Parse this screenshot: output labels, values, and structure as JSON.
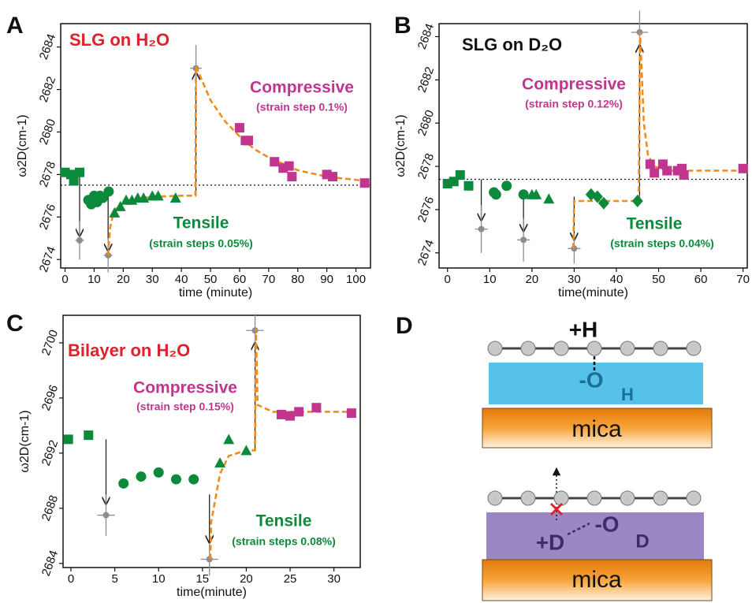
{
  "chart_data": [
    {
      "type": "scatter",
      "panel_label": "A",
      "title": "SLG on H₂O",
      "title_color": "#e0202a",
      "xlabel": "time (minute)",
      "ylabel": "ω2D(cm-1)",
      "xlim": [
        -1.5,
        105
      ],
      "ylim": [
        2673.6,
        2685.1
      ],
      "xticks": [
        0,
        10,
        20,
        30,
        40,
        50,
        60,
        70,
        80,
        90,
        100
      ],
      "yticks": [
        2674,
        2676,
        2678,
        2680,
        2682,
        2684
      ],
      "ref_line": 2677.5,
      "series": [
        {
          "color": "#0c8a3c",
          "marker": "square",
          "x": [
            0,
            2,
            3,
            5
          ],
          "values": [
            2678.1,
            2678,
            2677.7,
            2678.1
          ]
        },
        {
          "color": "#0c8a3c",
          "marker": "circle",
          "x": [
            8,
            9,
            10,
            11,
            12,
            13,
            15
          ],
          "values": [
            2676.8,
            2676.6,
            2677,
            2676.7,
            2677,
            2676.9,
            2677.2
          ]
        },
        {
          "color": "#0c8a3c",
          "marker": "triangle",
          "x": [
            17,
            19,
            21,
            23,
            25,
            27,
            30,
            32,
            38
          ],
          "values": [
            2676.2,
            2676.5,
            2676.8,
            2676.8,
            2676.9,
            2676.9,
            2677,
            2677,
            2676.9
          ]
        },
        {
          "color": "#c1358f",
          "marker": "square",
          "x": [
            60,
            62,
            63,
            72,
            75,
            77,
            78,
            90,
            92,
            103
          ],
          "values": [
            2680.2,
            2679.6,
            2679.6,
            2678.6,
            2678.3,
            2678.4,
            2677.9,
            2678,
            2677.9,
            2677.6
          ]
        }
      ],
      "errors": {
        "color": "#8c8c8c",
        "x": [
          5,
          14.8,
          45
        ],
        "values": [
          2674.9,
          2674.2,
          2683
        ],
        "xerr": [
          1.5,
          1.5,
          2
        ],
        "yerr": [
          0.9,
          0.8,
          1.1
        ]
      },
      "fit": {
        "color": "#f08c1e",
        "x": [
          14.8,
          15.5,
          16.5,
          18,
          22,
          30,
          40,
          44.8,
          45,
          50,
          55,
          60,
          65,
          70,
          80,
          90,
          103
        ],
        "values": [
          2674.2,
          2675.5,
          2676.1,
          2676.5,
          2676.8,
          2676.95,
          2677,
          2677,
          2683.1,
          2681.5,
          2680.5,
          2679.8,
          2679.2,
          2678.8,
          2678.2,
          2677.9,
          2677.7
        ]
      },
      "arrows": [
        {
          "x": 5,
          "y1": 2677.9,
          "y2": 2675.1
        },
        {
          "x": 14.8,
          "y1": 2677.1,
          "y2": 2674.4
        },
        {
          "x": 45,
          "y1": 2677,
          "y2": 2682.8
        }
      ],
      "annotations": [
        {
          "text": "Compressive",
          "color": "#c1358f"
        },
        {
          "text": "(strain step 0.1%)",
          "color": "#c1358f"
        },
        {
          "text": "Tensile",
          "color": "#0c8a3c"
        },
        {
          "text": "(strain steps 0.05%)",
          "color": "#0c8a3c"
        }
      ]
    },
    {
      "type": "scatter",
      "panel_label": "B",
      "title": "SLG on D₂O",
      "title_color": "#111111",
      "xlabel": "time(minute)",
      "ylabel": "ω2D(cm-1)",
      "xlim": [
        -2,
        71
      ],
      "ylim": [
        2673.3,
        2684.6
      ],
      "xticks": [
        0,
        10,
        20,
        30,
        40,
        50,
        60,
        70
      ],
      "yticks": [
        2674,
        2676,
        2678,
        2680,
        2682,
        2684
      ],
      "ref_line": 2677.4,
      "series": [
        {
          "color": "#0c8a3c",
          "marker": "square",
          "x": [
            0,
            1.5,
            3,
            5
          ],
          "values": [
            2677.2,
            2677.3,
            2677.6,
            2677.1
          ]
        },
        {
          "color": "#0c8a3c",
          "marker": "circle",
          "x": [
            11,
            11.5,
            14,
            18
          ],
          "values": [
            2676.8,
            2676.7,
            2677.1,
            2676.7
          ]
        },
        {
          "color": "#0c8a3c",
          "marker": "triangle",
          "x": [
            20,
            21,
            24
          ],
          "values": [
            2676.7,
            2676.7,
            2676.5
          ]
        },
        {
          "color": "#0c8a3c",
          "marker": "diamond",
          "x": [
            34,
            35.5,
            37,
            45
          ],
          "values": [
            2676.7,
            2676.6,
            2676.3,
            2676.4
          ]
        },
        {
          "color": "#c1358f",
          "marker": "square",
          "x": [
            48,
            49,
            51,
            52,
            54.5,
            55.5,
            56,
            70
          ],
          "values": [
            2678.1,
            2677.7,
            2678.1,
            2677.8,
            2677.8,
            2677.9,
            2677.6,
            2677.9
          ]
        }
      ],
      "errors": {
        "color": "#8c8c8c",
        "x": [
          8,
          18,
          30,
          45.5
        ],
        "values": [
          2675.1,
          2674.6,
          2674.2,
          2684.2
        ],
        "xerr": [
          1.5,
          1.5,
          1.5,
          2
        ],
        "yerr": [
          1.1,
          1,
          0.7,
          1
        ]
      },
      "fit": {
        "color": "#f08c1e",
        "x": [
          29.8,
          30,
          45.3,
          45.6,
          46.5,
          47.5,
          49,
          52,
          70
        ],
        "values": [
          2674.2,
          2676.4,
          2676.4,
          2684.2,
          2680,
          2678.5,
          2678,
          2677.8,
          2677.8
        ]
      },
      "arrows": [
        {
          "x": 8,
          "y1": 2677.4,
          "y2": 2675.5
        },
        {
          "x": 18,
          "y1": 2676.8,
          "y2": 2675
        },
        {
          "x": 30,
          "y1": 2676.6,
          "y2": 2674.6
        },
        {
          "x": 45.5,
          "y1": 2676.4,
          "y2": 2683.6
        }
      ],
      "annotations": [
        {
          "text": "Compressive",
          "color": "#c1358f"
        },
        {
          "text": "(strain step 0.12%)",
          "color": "#c1358f"
        },
        {
          "text": "Tensile",
          "color": "#0c8a3c"
        },
        {
          "text": "(strain steps 0.04%)",
          "color": "#0c8a3c"
        }
      ]
    },
    {
      "type": "scatter",
      "panel_label": "C",
      "title": "Bilayer on H₂O",
      "title_color": "#e0202a",
      "xlabel": "time(minute)",
      "ylabel": "ω2D(cm-1)",
      "xlim": [
        -0.9,
        33
      ],
      "ylim": [
        2683.7,
        2702
      ],
      "xticks": [
        0,
        5,
        10,
        15,
        20,
        25,
        30
      ],
      "yticks": [
        2684,
        2688,
        2692,
        2696,
        2700
      ],
      "series": [
        {
          "color": "#0c8a3c",
          "marker": "square",
          "x": [
            -0.3,
            2
          ],
          "values": [
            2693,
            2693.3
          ]
        },
        {
          "color": "#0c8a3c",
          "marker": "circle",
          "x": [
            6,
            8,
            10,
            12,
            14
          ],
          "values": [
            2689.8,
            2690.3,
            2690.6,
            2690.1,
            2690.1
          ]
        },
        {
          "color": "#0c8a3c",
          "marker": "triangle",
          "x": [
            17,
            18,
            20
          ],
          "values": [
            2691.3,
            2693,
            2692.2
          ]
        },
        {
          "color": "#c1358f",
          "marker": "square",
          "x": [
            24,
            25,
            26,
            28,
            32
          ],
          "values": [
            2694.8,
            2694.7,
            2695,
            2695.3,
            2694.9
          ]
        }
      ],
      "errors": {
        "color": "#8c8c8c",
        "x": [
          4,
          15.8,
          21
        ],
        "values": [
          2687.5,
          2684.3,
          2700.9
        ],
        "xerr": [
          1,
          1,
          1
        ],
        "yerr": [
          1.5,
          1.2,
          1.2
        ]
      },
      "fit": {
        "color": "#f08c1e",
        "x": [
          15.9,
          16,
          17,
          18,
          20,
          21,
          21.1,
          21.3,
          23,
          32
        ],
        "values": [
          2684.3,
          2687,
          2690.5,
          2691.8,
          2692.2,
          2692.2,
          2701,
          2695.5,
          2695,
          2695
        ]
      },
      "arrows": [
        {
          "x": 4,
          "y1": 2693,
          "y2": 2688.3
        },
        {
          "x": 15.8,
          "y1": 2689,
          "y2": 2685.5
        },
        {
          "x": 21,
          "y1": 2692.2,
          "y2": 2700
        }
      ],
      "annotations": [
        {
          "text": "Compressive",
          "color": "#c1358f"
        },
        {
          "text": "(strain step 0.15%)",
          "color": "#c1358f"
        },
        {
          "text": "Tensile",
          "color": "#0c8a3c"
        },
        {
          "text": "(strain steps 0.08%)",
          "color": "#0c8a3c"
        }
      ]
    }
  ],
  "panel_d": {
    "label": "D",
    "top": {
      "ion": "+H",
      "oxygen": "-O",
      "hydrogen": "H",
      "substrate": "mica"
    },
    "bottom": {
      "ion": "+D",
      "oxygen": "-O",
      "deuterium": "D",
      "substrate": "mica"
    }
  }
}
